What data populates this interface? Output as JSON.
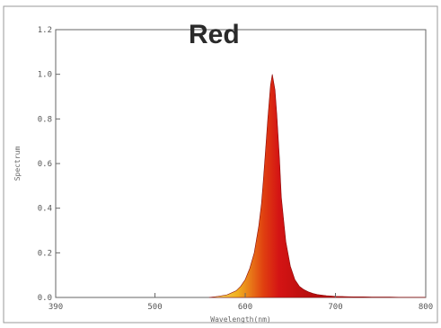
{
  "chart_data": {
    "type": "area",
    "title": "Red",
    "xlabel": "Wavelength(nm)",
    "ylabel": "Spectrum",
    "xlim": [
      390,
      800
    ],
    "ylim": [
      0,
      1.2
    ],
    "x_ticks": [
      390,
      500,
      600,
      700,
      800
    ],
    "x_tick_labels": [
      "390",
      "500",
      "600",
      "700",
      "800"
    ],
    "y_ticks": [
      0,
      0.2,
      0.4,
      0.6,
      0.8,
      1.0,
      1.2
    ],
    "y_tick_labels": [
      "0.0",
      "0.2",
      "0.4",
      "0.6",
      "0.8",
      "1.0",
      "1.2"
    ],
    "grid": false,
    "legend": "none",
    "colors": {
      "peak": "#d41414",
      "edge": "#f0c020",
      "outline": "#8a0a0a",
      "frame": "#666666"
    },
    "series": [
      {
        "x": [
          560,
          570,
          580,
          590,
          595,
          600,
          605,
          610,
          615,
          618,
          620,
          622,
          625,
          628,
          630,
          633,
          635,
          638,
          640,
          645,
          650,
          655,
          660,
          665,
          670,
          675,
          680,
          690,
          700,
          710,
          720,
          730,
          740,
          750,
          760,
          770,
          780,
          790,
          800
        ],
        "values": [
          0,
          0.005,
          0.012,
          0.03,
          0.05,
          0.08,
          0.13,
          0.2,
          0.32,
          0.42,
          0.52,
          0.63,
          0.8,
          0.95,
          1.0,
          0.93,
          0.82,
          0.62,
          0.45,
          0.25,
          0.14,
          0.08,
          0.05,
          0.035,
          0.025,
          0.018,
          0.013,
          0.008,
          0.005,
          0.004,
          0.003,
          0.003,
          0.002,
          0.002,
          0.002,
          0.001,
          0.001,
          0.001,
          0.001
        ]
      }
    ]
  }
}
